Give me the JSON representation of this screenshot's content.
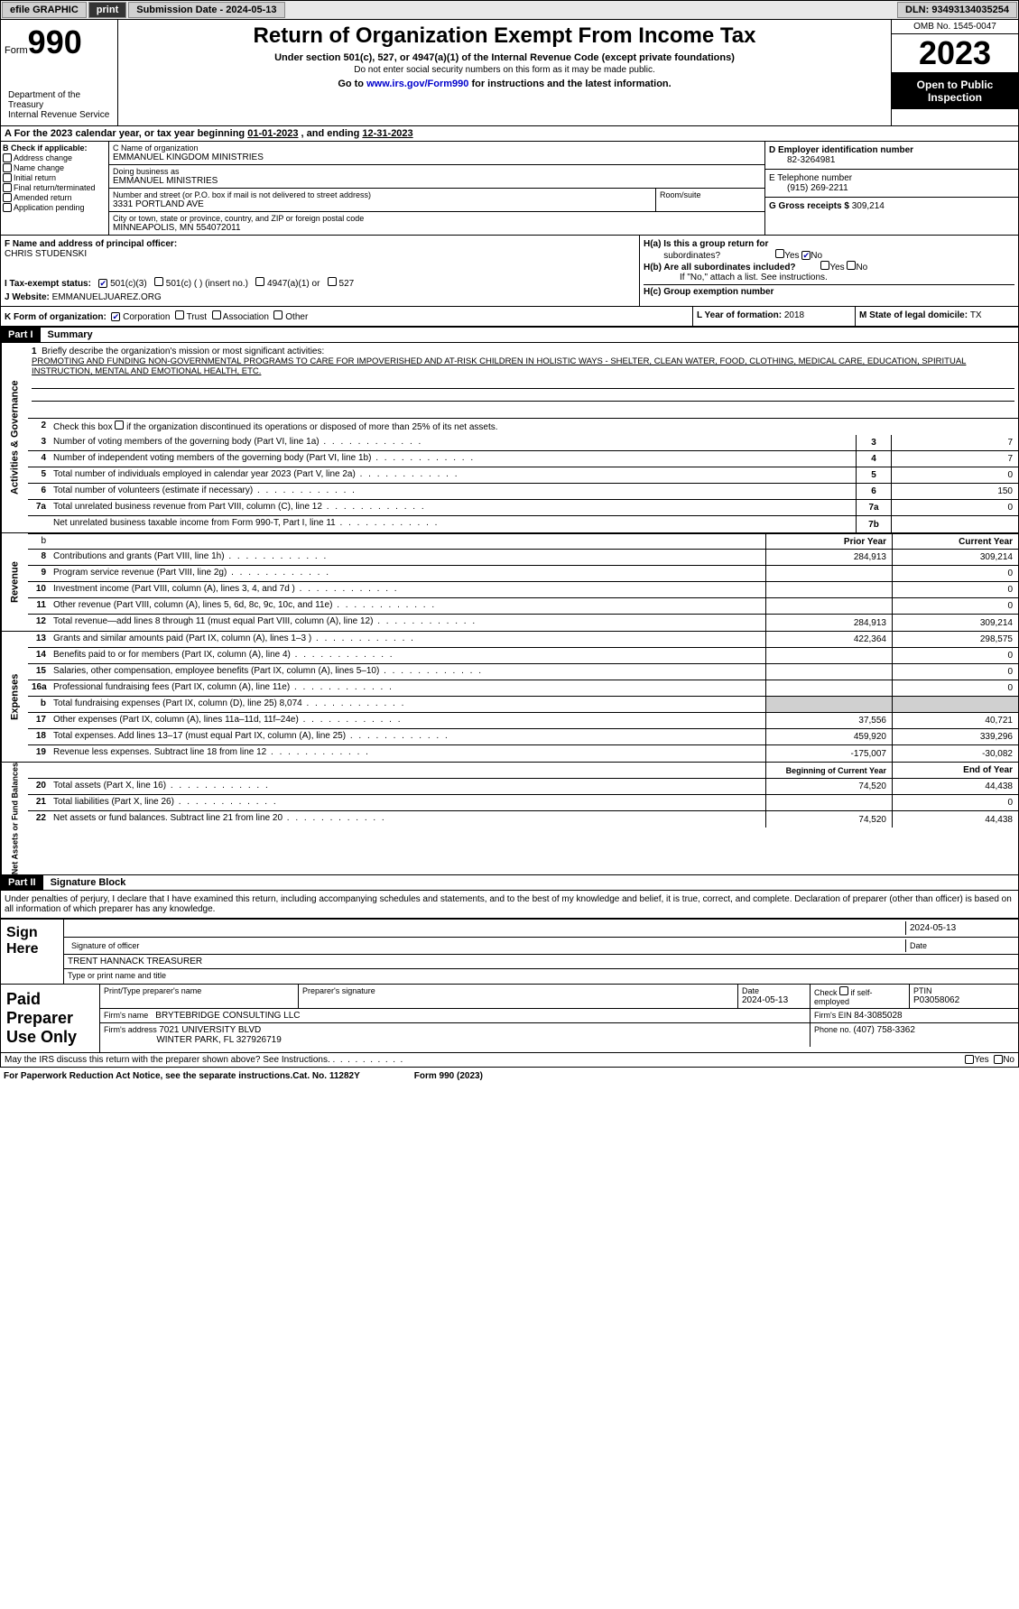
{
  "topbar": {
    "efile_label": "efile GRAPHIC",
    "print_label": "print",
    "submission_label": "Submission Date - 2024-05-13",
    "dln_label": "DLN: 93493134035254"
  },
  "header": {
    "form_label": "Form",
    "form_number": "990",
    "dept": "Department of the Treasury\nInternal Revenue Service",
    "title": "Return of Organization Exempt From Income Tax",
    "subtitle": "Under section 501(c), 527, or 4947(a)(1) of the Internal Revenue Code (except private foundations)",
    "note": "Do not enter social security numbers on this form as it may be made public.",
    "goto_prefix": "Go to ",
    "goto_link": "www.irs.gov/Form990",
    "goto_suffix": " for instructions and the latest information.",
    "omb": "OMB No. 1545-0047",
    "year": "2023",
    "open_inspect": "Open to Public Inspection"
  },
  "period": {
    "prefix": "A For the 2023 calendar year, or tax year beginning ",
    "begin": "01-01-2023",
    "mid": " , and ending ",
    "end": "12-31-2023"
  },
  "section_b": {
    "heading": "B Check if applicable:",
    "items": [
      {
        "label": "Address change",
        "checked": false
      },
      {
        "label": "Name change",
        "checked": false
      },
      {
        "label": "Initial return",
        "checked": false
      },
      {
        "label": "Final return/terminated",
        "checked": false
      },
      {
        "label": "Amended return",
        "checked": false
      },
      {
        "label": "Application pending",
        "checked": false
      }
    ]
  },
  "section_c": {
    "name_label": "C Name of organization",
    "name": "EMMANUEL KINGDOM MINISTRIES",
    "dba_label": "Doing business as",
    "dba": "EMMANUEL MINISTRIES",
    "street_label": "Number and street (or P.O. box if mail is not delivered to street address)",
    "street": "3331 PORTLAND AVE",
    "room_label": "Room/suite",
    "room": "",
    "city_label": "City or town, state or province, country, and ZIP or foreign postal code",
    "city": "MINNEAPOLIS, MN  554072011"
  },
  "section_d": {
    "label": "D Employer identification number",
    "value": "82-3264981"
  },
  "section_e": {
    "label": "E Telephone number",
    "value": "(915) 269-2211"
  },
  "section_g": {
    "label": "G Gross receipts $",
    "value": "309,214"
  },
  "section_f": {
    "label": "F  Name and address of principal officer:",
    "name": "CHRIS STUDENSKI"
  },
  "section_h": {
    "ha_label": "H(a)  Is this a group return for",
    "ha_sub": "subordinates?",
    "ha_yes": false,
    "ha_no": true,
    "hb_label": "H(b)  Are all subordinates included?",
    "hb_note": "If \"No,\" attach a list. See instructions.",
    "hc_label": "H(c)  Group exemption number "
  },
  "tax_exempt": {
    "label": "I   Tax-exempt status:",
    "c501c3": true,
    "c501c3_label": "501(c)(3)",
    "c501c_label": "501(c) (  ) (insert no.)",
    "c4947_label": "4947(a)(1) or",
    "c527_label": "527"
  },
  "website": {
    "label": "J   Website: ",
    "value": "EMMANUELJUAREZ.ORG"
  },
  "form_org": {
    "label": "K Form of organization:",
    "corp": true,
    "corp_label": "Corporation",
    "trust_label": "Trust",
    "assoc_label": "Association",
    "other_label": "Other"
  },
  "year_formation": {
    "label": "L Year of formation: ",
    "value": "2018"
  },
  "domicile": {
    "label": "M State of legal domicile: ",
    "value": "TX"
  },
  "part1": {
    "label": "Part I",
    "title": "Summary"
  },
  "part2": {
    "label": "Part II",
    "title": "Signature Block"
  },
  "side_labels": {
    "activities": "Activities & Governance",
    "revenue": "Revenue",
    "expenses": "Expenses",
    "netassets": "Net Assets or Fund Balances"
  },
  "mission": {
    "label": "Briefly describe the organization's mission or most significant activities:",
    "text": "PROMOTING AND FUNDING NON-GOVERNMENTAL PROGRAMS TO CARE FOR IMPOVERISHED AND AT-RISK CHILDREN IN HOLISTIC WAYS - SHELTER, CLEAN WATER, FOOD, CLOTHING, MEDICAL CARE, EDUCATION, SPIRITUAL INSTRUCTION, MENTAL AND EMOTIONAL HEALTH, ETC."
  },
  "line2_prefix": "Check this box ",
  "line2_suffix": " if the organization discontinued its operations or disposed of more than 25% of its net assets.",
  "gov_lines": [
    {
      "num": "3",
      "desc": "Number of voting members of the governing body (Part VI, line 1a)",
      "key": "3",
      "val": "7"
    },
    {
      "num": "4",
      "desc": "Number of independent voting members of the governing body (Part VI, line 1b)",
      "key": "4",
      "val": "7"
    },
    {
      "num": "5",
      "desc": "Total number of individuals employed in calendar year 2023 (Part V, line 2a)",
      "key": "5",
      "val": "0"
    },
    {
      "num": "6",
      "desc": "Total number of volunteers (estimate if necessary)",
      "key": "6",
      "val": "150"
    },
    {
      "num": "7a",
      "desc": "Total unrelated business revenue from Part VIII, column (C), line 12",
      "key": "7a",
      "val": "0"
    },
    {
      "num": "",
      "desc": "Net unrelated business taxable income from Form 990-T, Part I, line 11",
      "key": "7b",
      "val": ""
    }
  ],
  "col_headers": {
    "prior": "Prior Year",
    "current": "Current Year",
    "beg": "Beginning of Current Year",
    "end": "End of Year"
  },
  "revenue_lines": [
    {
      "num": "8",
      "desc": "Contributions and grants (Part VIII, line 1h)",
      "prior": "284,913",
      "curr": "309,214"
    },
    {
      "num": "9",
      "desc": "Program service revenue (Part VIII, line 2g)",
      "prior": "",
      "curr": "0"
    },
    {
      "num": "10",
      "desc": "Investment income (Part VIII, column (A), lines 3, 4, and 7d )",
      "prior": "",
      "curr": "0"
    },
    {
      "num": "11",
      "desc": "Other revenue (Part VIII, column (A), lines 5, 6d, 8c, 9c, 10c, and 11e)",
      "prior": "",
      "curr": "0"
    },
    {
      "num": "12",
      "desc": "Total revenue—add lines 8 through 11 (must equal Part VIII, column (A), line 12)",
      "prior": "284,913",
      "curr": "309,214"
    }
  ],
  "expense_lines": [
    {
      "num": "13",
      "desc": "Grants and similar amounts paid (Part IX, column (A), lines 1–3 )",
      "prior": "422,364",
      "curr": "298,575"
    },
    {
      "num": "14",
      "desc": "Benefits paid to or for members (Part IX, column (A), line 4)",
      "prior": "",
      "curr": "0"
    },
    {
      "num": "15",
      "desc": "Salaries, other compensation, employee benefits (Part IX, column (A), lines 5–10)",
      "prior": "",
      "curr": "0"
    },
    {
      "num": "16a",
      "desc": "Professional fundraising fees (Part IX, column (A), line 11e)",
      "prior": "",
      "curr": "0"
    },
    {
      "num": "b",
      "desc": "Total fundraising expenses (Part IX, column (D), line 25) 8,074",
      "prior": "",
      "curr": "",
      "shade_curr": true
    },
    {
      "num": "17",
      "desc": "Other expenses (Part IX, column (A), lines 11a–11d, 11f–24e)",
      "prior": "37,556",
      "curr": "40,721"
    },
    {
      "num": "18",
      "desc": "Total expenses. Add lines 13–17 (must equal Part IX, column (A), line 25)",
      "prior": "459,920",
      "curr": "339,296"
    },
    {
      "num": "19",
      "desc": "Revenue less expenses. Subtract line 18 from line 12",
      "prior": "-175,007",
      "curr": "-30,082"
    }
  ],
  "netasset_lines": [
    {
      "num": "20",
      "desc": "Total assets (Part X, line 16)",
      "prior": "74,520",
      "curr": "44,438"
    },
    {
      "num": "21",
      "desc": "Total liabilities (Part X, line 26)",
      "prior": "",
      "curr": "0"
    },
    {
      "num": "22",
      "desc": "Net assets or fund balances. Subtract line 21 from line 20",
      "prior": "74,520",
      "curr": "44,438"
    }
  ],
  "sig": {
    "declare": "Under penalties of perjury, I declare that I have examined this return, including accompanying schedules and statements, and to the best of my knowledge and belief, it is true, correct, and complete. Declaration of preparer (other than officer) is based on all information of which preparer has any knowledge.",
    "sign_here": "Sign Here",
    "sig_date": "2024-05-13",
    "sig_officer_label": "Signature of officer",
    "sig_date_label": "Date",
    "officer_name": "TRENT HANNACK  TREASURER",
    "type_print_label": "Type or print name and title"
  },
  "preparer": {
    "side": "Paid Preparer Use Only",
    "print_name_label": "Print/Type preparer's name",
    "print_name": "",
    "sig_label": "Preparer's signature",
    "date_label": "Date",
    "date": "2024-05-13",
    "check_label": "Check ",
    "check_suffix": " if self-employed",
    "ptin_label": "PTIN",
    "ptin": "P03058062",
    "firm_name_label": "Firm's name  ",
    "firm_name": "BRYTEBRIDGE CONSULTING LLC",
    "firm_ein_label": "Firm's EIN  ",
    "firm_ein": "84-3085028",
    "firm_addr_label": "Firm's address ",
    "firm_addr1": "7021 UNIVERSITY BLVD",
    "firm_addr2": "WINTER PARK, FL  327926719",
    "phone_label": "Phone no. ",
    "phone": "(407) 758-3362"
  },
  "discuss": {
    "text": "May the IRS discuss this return with the preparer shown above? See Instructions.",
    "yes": "Yes",
    "no": "No"
  },
  "footer": {
    "paperwork": "For Paperwork Reduction Act Notice, see the separate instructions.",
    "cat": "Cat. No. 11282Y",
    "form": "Form 990 (2023)"
  },
  "b_hint": "b"
}
